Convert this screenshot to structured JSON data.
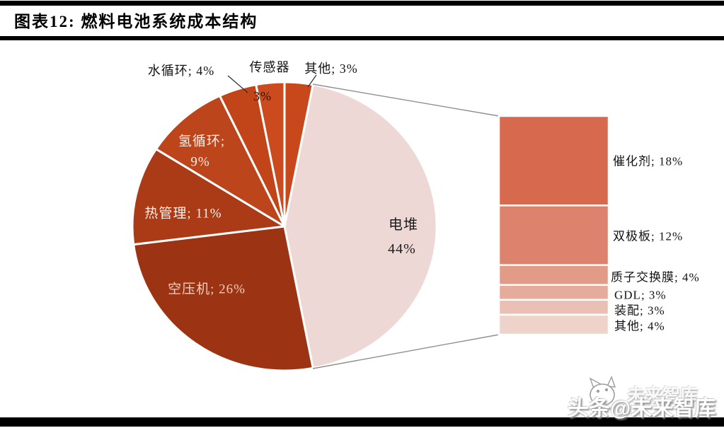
{
  "title": "图表12:  燃料电池系统成本结构",
  "watermark": {
    "main": "头条@未来智库",
    "ghost": "未来智库"
  },
  "chart_data": {
    "type": "pie",
    "subtype": "bar-of-pie",
    "title": "燃料电池系统成本结构",
    "unit": "%",
    "legend": "none",
    "pie": {
      "direction": "clockwise",
      "start_angle_deg": 0,
      "slices": [
        {
          "label": "其他",
          "value": 3,
          "display": "其他; 3%",
          "color": "#C8481B",
          "label_placement": "outside"
        },
        {
          "label": "电堆",
          "value": 44,
          "display_line1": "电堆",
          "display_line2": "44%",
          "color": "#EDD8D5",
          "label_placement": "inside"
        },
        {
          "label": "空压机",
          "value": 26,
          "display": "空压机; 26%",
          "color": "#9C3413",
          "label_placement": "inside"
        },
        {
          "label": "热管理",
          "value": 11,
          "display": "热管理; 11%",
          "color": "#AA3B16",
          "label_placement": "inside"
        },
        {
          "label": "氢循环",
          "value": 9,
          "display_line1": "氢循环;",
          "display_line2": "9%",
          "color": "#BC451B",
          "label_placement": "inside"
        },
        {
          "label": "水循环",
          "value": 4,
          "display": "水循环; 4%",
          "color": "#C24519",
          "label_placement": "outside"
        },
        {
          "label": "传感器",
          "value": 3,
          "display_line1": "传感器",
          "display_line2": "3%",
          "color": "#CC4B1E",
          "label_placement": "outside"
        }
      ]
    },
    "breakdown_bar": {
      "parent_label": "电堆",
      "parent_value": 44,
      "segments": [
        {
          "label": "催化剂",
          "value": 18,
          "display": "催化剂; 18%",
          "color": "#D7694F"
        },
        {
          "label": "双极板",
          "value": 12,
          "display": "双极板; 12%",
          "color": "#DC826D"
        },
        {
          "label": "质子交换膜",
          "value": 4,
          "display": "质子交换膜; 4%",
          "color": "#E19B87"
        },
        {
          "label": "GDL",
          "value": 3,
          "display": "GDL; 3%",
          "color": "#E5AC9C"
        },
        {
          "label": "装配",
          "value": 3,
          "display": "装配; 3%",
          "color": "#EAC0B5"
        },
        {
          "label": "其他",
          "value": 4,
          "display": "其他; 4%",
          "color": "#EED3CA"
        }
      ]
    }
  }
}
